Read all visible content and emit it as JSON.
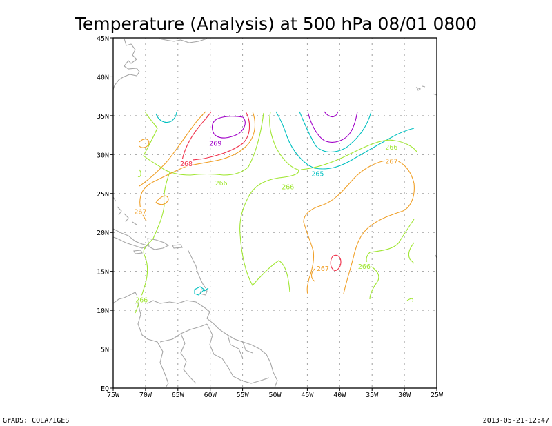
{
  "title": "Temperature (Analysis) at 500 hPa 08/01 0800",
  "footer": {
    "left": "GrADS: COLA/IGES",
    "right": "2013-05-21-12:47"
  },
  "map": {
    "lon_range": [
      -75,
      -25
    ],
    "lat_range": [
      0,
      45
    ],
    "x_ticks": [
      "75W",
      "70W",
      "65W",
      "60W",
      "55W",
      "50W",
      "45W",
      "40W",
      "35W",
      "30W",
      "25W"
    ],
    "y_ticks": [
      "EQ",
      "5N",
      "10N",
      "15N",
      "20N",
      "25N",
      "30N",
      "35N",
      "40N",
      "45N"
    ]
  },
  "colors": {
    "c265": "#00c0c0",
    "c266": "#a0e632",
    "c267": "#f0a028",
    "c268": "#f0304a",
    "c269": "#a000c8",
    "coast": "#a6a6a6"
  },
  "contour_labels": [
    {
      "text": "269",
      "lon": -59.2,
      "lat": 31.5,
      "color": "#a000c8"
    },
    {
      "text": "268",
      "lon": -63.7,
      "lat": 28.9,
      "color": "#f0304a"
    },
    {
      "text": "266",
      "lon": -58.3,
      "lat": 26.4,
      "color": "#a0e632"
    },
    {
      "text": "266",
      "lon": -48.0,
      "lat": 25.9,
      "color": "#a0e632"
    },
    {
      "text": "265",
      "lon": -43.4,
      "lat": 27.6,
      "color": "#00c0c0"
    },
    {
      "text": "266",
      "lon": -32.0,
      "lat": 31.0,
      "color": "#a0e632"
    },
    {
      "text": "267",
      "lon": -32.0,
      "lat": 29.2,
      "color": "#f0a028"
    },
    {
      "text": "267",
      "lon": -70.8,
      "lat": 22.7,
      "color": "#f0a028"
    },
    {
      "text": "267",
      "lon": -42.6,
      "lat": 15.4,
      "color": "#f0a028"
    },
    {
      "text": "266",
      "lon": -36.2,
      "lat": 15.7,
      "color": "#a0e632"
    },
    {
      "text": "266",
      "lon": -70.6,
      "lat": 11.4,
      "color": "#a0e632"
    }
  ]
}
